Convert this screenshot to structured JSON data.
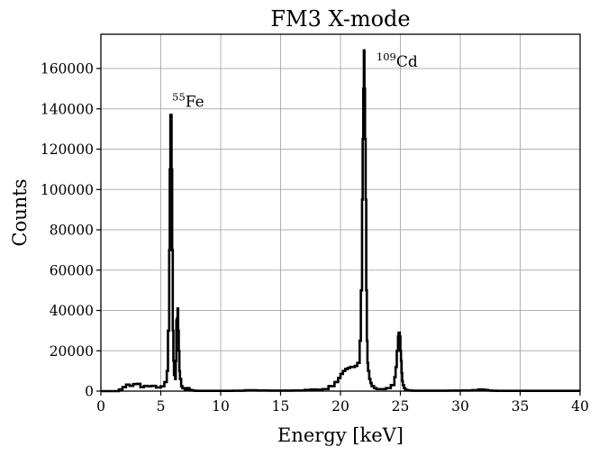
{
  "chart_data": {
    "type": "line",
    "title": "FM3 X-mode",
    "xlabel": "Energy [keV]",
    "ylabel": "Counts",
    "xlim": [
      0,
      40
    ],
    "ylim": [
      0,
      177000
    ],
    "xticks": [
      0,
      5,
      10,
      15,
      20,
      25,
      30,
      35,
      40
    ],
    "yticks": [
      0,
      20000,
      40000,
      60000,
      80000,
      100000,
      120000,
      140000,
      160000
    ],
    "grid": true,
    "line_style": "steps",
    "line_color": "#000000",
    "annotations": [
      {
        "sup": "55",
        "text": "Fe",
        "x": 5.95,
        "y": 141000
      },
      {
        "sup": "109",
        "text": "Cd",
        "x": 23.0,
        "y": 161000
      }
    ],
    "series": [
      {
        "x": [
          0,
          1.0,
          1.5,
          1.8,
          2.1,
          2.4,
          2.7,
          3.0,
          3.3,
          3.6,
          3.9,
          4.2,
          4.6,
          5.0,
          5.3,
          5.5,
          5.6,
          5.7,
          5.75,
          5.8,
          5.85,
          5.9,
          5.95,
          6.0,
          6.05,
          6.1,
          6.2,
          6.25,
          6.3,
          6.35,
          6.4,
          6.45,
          6.5,
          6.55,
          6.6,
          6.7,
          6.8,
          7.0,
          7.2,
          7.4,
          7.6,
          7.8,
          8.0,
          8.5,
          9.0,
          10.0,
          11.0,
          12.0,
          13.0,
          14.0,
          15.0,
          16.0,
          17.0,
          17.5,
          18.0,
          18.5,
          19.0,
          19.5,
          19.8,
          20.0,
          20.2,
          20.4,
          20.6,
          20.8,
          21.0,
          21.2,
          21.4,
          21.6,
          21.7,
          21.8,
          21.85,
          21.9,
          21.95,
          22.0,
          22.05,
          22.1,
          22.15,
          22.2,
          22.25,
          22.3,
          22.4,
          22.5,
          22.6,
          22.8,
          23.0,
          23.4,
          23.8,
          24.2,
          24.5,
          24.6,
          24.7,
          24.8,
          24.85,
          24.9,
          24.95,
          25.0,
          25.05,
          25.1,
          25.15,
          25.2,
          25.3,
          25.4,
          25.5,
          25.7,
          26.0,
          27.0,
          28.0,
          29.0,
          30.0,
          31.0,
          31.5,
          32.0,
          32.3,
          32.6,
          33.0,
          34.0,
          35.0,
          36.0,
          37.0,
          38.0,
          39.0,
          40.0
        ],
        "y": [
          0,
          0,
          800,
          2000,
          3200,
          2600,
          3500,
          3600,
          2000,
          2600,
          2400,
          2600,
          1800,
          2400,
          4500,
          10000,
          30000,
          70000,
          110000,
          137000,
          137000,
          110000,
          70000,
          30000,
          15000,
          8000,
          6000,
          15000,
          35000,
          36000,
          41000,
          30000,
          20000,
          10000,
          6000,
          2500,
          1500,
          800,
          1500,
          600,
          300,
          200,
          150,
          150,
          150,
          150,
          200,
          400,
          300,
          250,
          250,
          300,
          600,
          800,
          700,
          1000,
          2500,
          4500,
          6500,
          8500,
          10000,
          11000,
          11500,
          12000,
          12000,
          12500,
          14000,
          25000,
          50000,
          95000,
          125000,
          150000,
          169000,
          150000,
          125000,
          95000,
          50000,
          25000,
          14000,
          10000,
          6000,
          4000,
          2500,
          1500,
          1000,
          1000,
          1500,
          3000,
          7000,
          12000,
          20000,
          27000,
          29000,
          29000,
          27000,
          20000,
          15000,
          9000,
          5000,
          3000,
          1500,
          800,
          500,
          300,
          200,
          200,
          200,
          250,
          300,
          500,
          800,
          600,
          300,
          200,
          150,
          150,
          150,
          150,
          150,
          150,
          150,
          150
        ]
      }
    ]
  }
}
